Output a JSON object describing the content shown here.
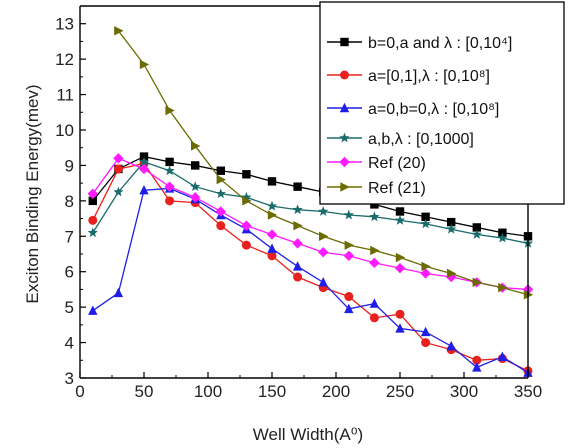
{
  "chart_data": {
    "type": "line",
    "xlabel": "Well Width(A⁰)",
    "ylabel": "Exciton Binding Energy(mev)",
    "xlim": [
      0,
      350
    ],
    "ylim": [
      3,
      13.5
    ],
    "xticks": [
      0,
      50,
      100,
      150,
      200,
      250,
      300,
      350
    ],
    "yticks": [
      3,
      4,
      5,
      6,
      7,
      8,
      9,
      10,
      11,
      12,
      13
    ],
    "grid": false,
    "legend_position": "top-right",
    "series": [
      {
        "name": "b=0,a and λ : [0,10⁴]",
        "color": "#000000",
        "marker": "square",
        "x": [
          10,
          30,
          50,
          70,
          90,
          110,
          130,
          150,
          170,
          190,
          210,
          230,
          250,
          270,
          290,
          310,
          330,
          350
        ],
        "y": [
          8.0,
          8.9,
          9.25,
          9.1,
          9.0,
          8.85,
          8.75,
          8.55,
          8.4,
          8.25,
          8.05,
          7.9,
          7.7,
          7.55,
          7.4,
          7.25,
          7.1,
          7.0
        ]
      },
      {
        "name": "a=[0,1],λ : [0,10⁸]",
        "color": "#e8201e",
        "marker": "circle",
        "x": [
          10,
          30,
          50,
          70,
          90,
          110,
          130,
          150,
          170,
          190,
          210,
          230,
          250,
          270,
          290,
          310,
          330,
          350
        ],
        "y": [
          7.45,
          8.9,
          9.05,
          8.0,
          7.95,
          7.3,
          6.75,
          6.45,
          5.85,
          5.55,
          5.3,
          4.7,
          4.8,
          4.0,
          3.8,
          3.5,
          3.55,
          3.2
        ]
      },
      {
        "name": "a=0,b=0,λ : [0,10⁸]",
        "color": "#1e1ee6",
        "marker": "triangle",
        "x": [
          10,
          30,
          50,
          70,
          90,
          110,
          130,
          150,
          170,
          190,
          210,
          230,
          250,
          270,
          290,
          310,
          330,
          350
        ],
        "y": [
          4.9,
          5.4,
          8.3,
          8.35,
          8.05,
          7.6,
          7.2,
          6.65,
          6.15,
          5.7,
          4.95,
          5.1,
          4.4,
          4.3,
          3.9,
          3.3,
          3.6,
          3.15
        ]
      },
      {
        "name": "a,b,λ : [0,1000]",
        "color": "#1a6b6b",
        "marker": "star",
        "x": [
          10,
          30,
          50,
          70,
          90,
          110,
          130,
          150,
          170,
          190,
          210,
          230,
          250,
          270,
          290,
          310,
          330,
          350
        ],
        "y": [
          7.1,
          8.25,
          9.1,
          8.85,
          8.4,
          8.2,
          8.1,
          7.85,
          7.75,
          7.7,
          7.6,
          7.55,
          7.45,
          7.35,
          7.2,
          7.05,
          6.95,
          6.8
        ]
      },
      {
        "name": "Ref (20)",
        "color": "#ff1aff",
        "marker": "diamond",
        "x": [
          10,
          30,
          50,
          70,
          90,
          110,
          130,
          150,
          170,
          190,
          210,
          230,
          250,
          270,
          290,
          310,
          330,
          350
        ],
        "y": [
          8.2,
          9.2,
          8.9,
          8.4,
          8.1,
          7.7,
          7.3,
          7.05,
          6.8,
          6.55,
          6.45,
          6.25,
          6.1,
          5.95,
          5.85,
          5.7,
          5.55,
          5.5
        ]
      },
      {
        "name": "Ref (21)",
        "color": "#6b6b00",
        "marker": "triangle-right",
        "x": [
          30,
          50,
          70,
          90,
          110,
          130,
          150,
          170,
          190,
          210,
          230,
          250,
          270,
          290,
          310,
          330,
          350
        ],
        "y": [
          12.8,
          11.85,
          10.55,
          9.55,
          8.6,
          8.0,
          7.6,
          7.3,
          7.0,
          6.75,
          6.6,
          6.4,
          6.15,
          5.95,
          5.7,
          5.55,
          5.35
        ]
      }
    ]
  }
}
